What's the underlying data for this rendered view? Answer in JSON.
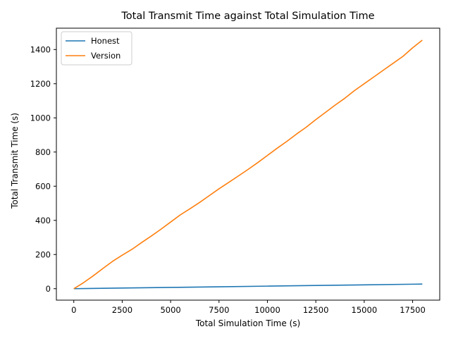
{
  "chart_data": {
    "type": "line",
    "title": "Total Transmit Time against Total Simulation Time",
    "xlabel": "Total Simulation Time (s)",
    "ylabel": "Total Transmit Time (s)",
    "xlim": [
      -900,
      18900
    ],
    "ylim": [
      -67,
      1525
    ],
    "xticks": [
      0,
      2500,
      5000,
      7500,
      10000,
      12500,
      15000,
      17500
    ],
    "yticks": [
      0,
      200,
      400,
      600,
      800,
      1000,
      1200,
      1400
    ],
    "grid": false,
    "legend_position": "top-left",
    "series": [
      {
        "name": "Honest",
        "color": "#1f77b4",
        "x": [
          0,
          2500,
          5000,
          7500,
          10000,
          12500,
          15000,
          17500,
          18000
        ],
        "y": [
          0,
          3.8,
          7.5,
          11.3,
          15,
          18.8,
          22.5,
          26.3,
          27
        ]
      },
      {
        "name": "Version",
        "color": "#ff7f0e",
        "x": [
          0,
          500,
          1000,
          1500,
          2000,
          2500,
          3000,
          3500,
          4000,
          4500,
          5000,
          5500,
          6000,
          6500,
          7000,
          7500,
          8000,
          8500,
          9000,
          9500,
          10000,
          10500,
          11000,
          11500,
          12000,
          12500,
          13000,
          13500,
          14000,
          14500,
          15000,
          15500,
          16000,
          16500,
          17000,
          17500,
          18000
        ],
        "y": [
          0,
          35,
          75,
          118,
          160,
          196,
          230,
          270,
          308,
          348,
          390,
          432,
          468,
          505,
          545,
          585,
          622,
          660,
          698,
          738,
          780,
          822,
          862,
          905,
          945,
          990,
          1032,
          1075,
          1115,
          1160,
          1200,
          1240,
          1280,
          1320,
          1360,
          1410,
          1455
        ]
      }
    ]
  }
}
